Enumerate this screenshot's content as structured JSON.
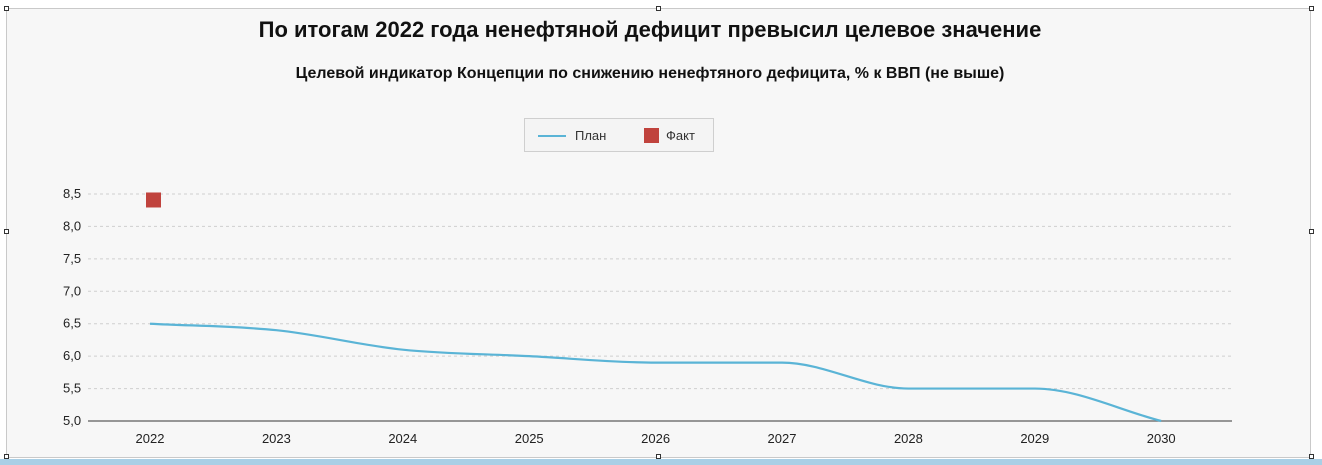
{
  "chart_data": {
    "type": "line",
    "title": "По итогам 2022 года ненефтяной дефицит превысил целевое  значение",
    "subtitle": "Целевой индикатор Концепции по снижению ненефтяного дефицита, % к ВВП (не выше)",
    "x": [
      "2022",
      "2023",
      "2024",
      "2025",
      "2026",
      "2027",
      "2028",
      "2029",
      "2030"
    ],
    "y_ticks": [
      "5,0",
      "5,5",
      "6,0",
      "6,5",
      "7,0",
      "7,5",
      "8,0",
      "8,5"
    ],
    "ylim": [
      5.0,
      8.5
    ],
    "grid": true,
    "legend_position": "top-center",
    "series": [
      {
        "name": "План",
        "kind": "line",
        "color": "#5ab4d6",
        "values": [
          6.5,
          6.4,
          6.1,
          6.0,
          5.9,
          5.9,
          5.5,
          5.5,
          5.0
        ]
      },
      {
        "name": "Факт",
        "kind": "marker",
        "color": "#c0433d",
        "values": [
          8.4,
          null,
          null,
          null,
          null,
          null,
          null,
          null,
          null
        ]
      }
    ]
  }
}
